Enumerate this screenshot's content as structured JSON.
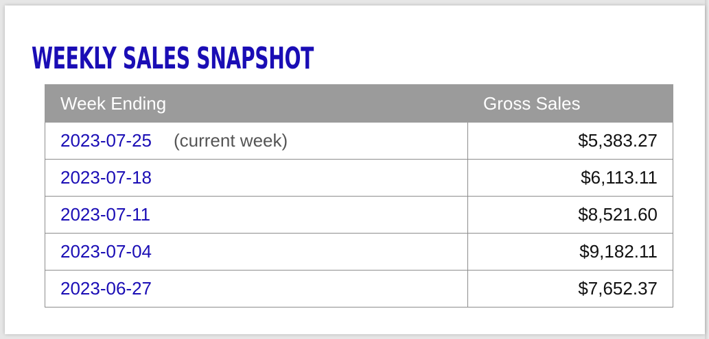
{
  "page": {
    "title": "WEEKLY SALES SNAPSHOT"
  },
  "table": {
    "headers": {
      "week": "Week Ending",
      "sales": "Gross Sales"
    },
    "rows": [
      {
        "week": "2023-07-25",
        "note": "(current week)",
        "sales": "$5,383.27"
      },
      {
        "week": "2023-07-18",
        "note": "",
        "sales": "$6,113.11"
      },
      {
        "week": "2023-07-11",
        "note": "",
        "sales": "$8,521.60"
      },
      {
        "week": "2023-07-04",
        "note": "",
        "sales": "$9,182.11"
      },
      {
        "week": "2023-06-27",
        "note": "",
        "sales": "$7,652.37"
      }
    ]
  },
  "colors": {
    "title": "#1a0db5",
    "link": "#1a0db5",
    "header_bg": "#9b9b9b",
    "border": "#8c8c8c"
  }
}
